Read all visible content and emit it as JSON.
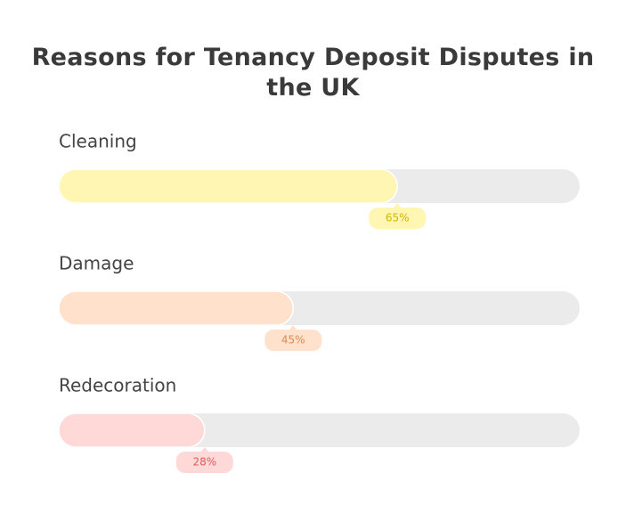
{
  "chart_data": {
    "type": "bar",
    "orientation": "horizontal",
    "title": "Reasons for Tenancy Deposit Disputes in the UK",
    "categories": [
      "Cleaning",
      "Damage",
      "Redecoration"
    ],
    "values": [
      65,
      45,
      28
    ],
    "value_labels": [
      "65%",
      "45%",
      "28%"
    ],
    "colors": [
      "#fff6b3",
      "#ffe1cc",
      "#ffd8d8"
    ],
    "label_colors": [
      "#d6b400",
      "#df8a4c",
      "#e05c5c"
    ],
    "xlim": [
      0,
      100
    ]
  }
}
